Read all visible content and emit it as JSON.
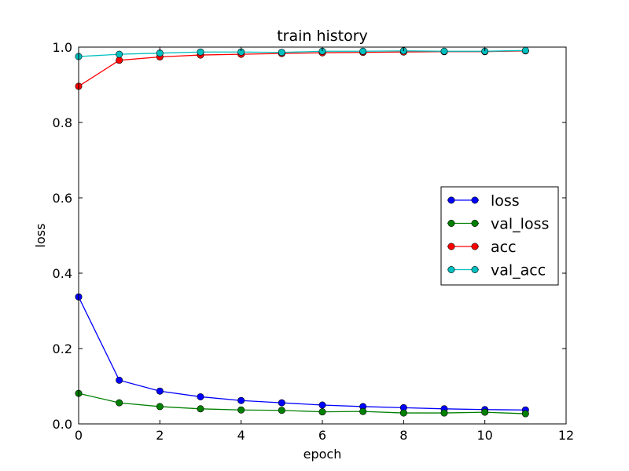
{
  "chart_data": {
    "type": "line",
    "title": "train history",
    "xlabel": "epoch",
    "ylabel": "loss",
    "xlim": [
      0,
      12
    ],
    "ylim": [
      0.0,
      1.0
    ],
    "xticks": [
      "0",
      "2",
      "4",
      "6",
      "8",
      "10",
      "12"
    ],
    "yticks": [
      "0.0",
      "0.2",
      "0.4",
      "0.6",
      "0.8",
      "1.0"
    ],
    "grid": false,
    "legend_position": "center-right",
    "x": [
      0,
      1,
      2,
      3,
      4,
      5,
      6,
      7,
      8,
      9,
      10,
      11
    ],
    "series": [
      {
        "name": "loss",
        "color": "#0000ff",
        "values": [
          0.337,
          0.116,
          0.087,
          0.072,
          0.062,
          0.056,
          0.05,
          0.046,
          0.043,
          0.04,
          0.038,
          0.037
        ]
      },
      {
        "name": "val_loss",
        "color": "#008000",
        "values": [
          0.081,
          0.056,
          0.046,
          0.04,
          0.037,
          0.036,
          0.032,
          0.033,
          0.029,
          0.029,
          0.031,
          0.027
        ]
      },
      {
        "name": "acc",
        "color": "#ff0000",
        "values": [
          0.896,
          0.965,
          0.974,
          0.979,
          0.981,
          0.983,
          0.985,
          0.986,
          0.987,
          0.988,
          0.988,
          0.99
        ]
      },
      {
        "name": "val_acc",
        "color": "#00bfbf",
        "values": [
          0.975,
          0.981,
          0.984,
          0.987,
          0.987,
          0.986,
          0.989,
          0.989,
          0.99,
          0.989,
          0.989,
          0.991
        ]
      }
    ]
  }
}
